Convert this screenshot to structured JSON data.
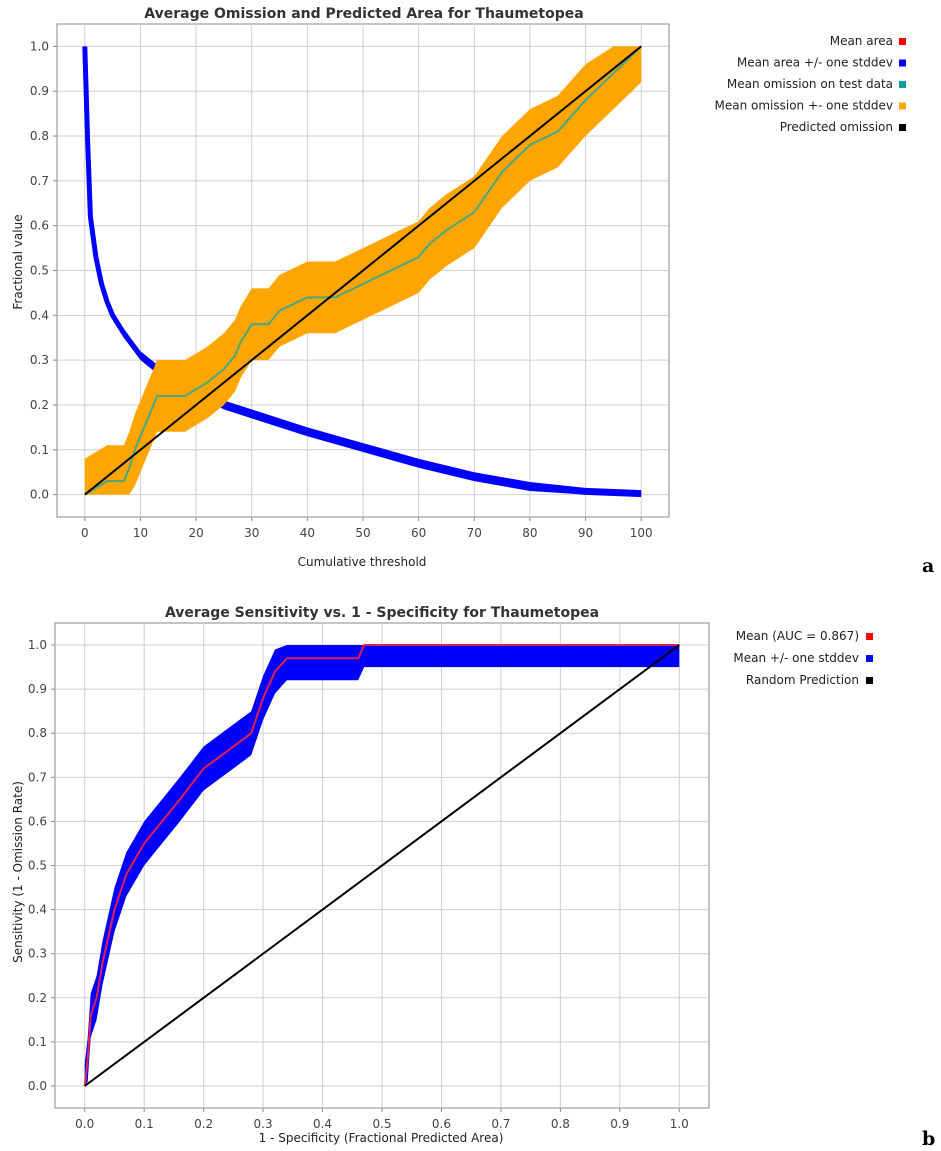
{
  "chart_data": [
    {
      "type": "line",
      "title": "Average Omission and Predicted Area for Thaumetopea",
      "xlabel": "Cumulative threshold",
      "ylabel": "Fractional value",
      "xlim": [
        -5,
        105
      ],
      "ylim": [
        -0.05,
        1.05
      ],
      "xticks": [
        "0",
        "10",
        "20",
        "30",
        "40",
        "50",
        "60",
        "70",
        "80",
        "90",
        "100"
      ],
      "yticks": [
        "0.0",
        "0.1",
        "0.2",
        "0.3",
        "0.4",
        "0.5",
        "0.6",
        "0.7",
        "0.8",
        "0.9",
        "1.0"
      ],
      "grid": true,
      "legend_position": "right",
      "panel_label": "a",
      "legend": [
        {
          "label": "Mean area",
          "color": "#ff0000"
        },
        {
          "label": "Mean area +/- one stddev",
          "color": "#0000ff"
        },
        {
          "label": "Mean omission on test data",
          "color": "#00a0a0"
        },
        {
          "label": "Mean omission +- one stddev",
          "color": "#ffa500"
        },
        {
          "label": "Predicted omission",
          "color": "#000000"
        }
      ],
      "series": [
        {
          "name": "Mean area",
          "color": "#d01010",
          "x": [
            0,
            0.5,
            1,
            2,
            3,
            4,
            5,
            7,
            10,
            15,
            20,
            25,
            30,
            40,
            50,
            60,
            70,
            80,
            90,
            100
          ],
          "y": [
            1.0,
            0.79,
            0.62,
            0.53,
            0.47,
            0.43,
            0.4,
            0.36,
            0.31,
            0.26,
            0.23,
            0.2,
            0.18,
            0.14,
            0.105,
            0.07,
            0.04,
            0.018,
            0.005,
            0.0
          ]
        },
        {
          "name": "Mean area +/- one stddev",
          "color": "#0000ff",
          "x": [
            0,
            0.5,
            1,
            2,
            3,
            4,
            5,
            7,
            10,
            15,
            20,
            25,
            30,
            40,
            50,
            60,
            70,
            80,
            90,
            100
          ],
          "y": [
            1.0,
            0.79,
            0.62,
            0.53,
            0.47,
            0.43,
            0.4,
            0.36,
            0.31,
            0.26,
            0.23,
            0.2,
            0.18,
            0.14,
            0.105,
            0.07,
            0.04,
            0.018,
            0.005,
            0.0
          ],
          "spread": 0.01
        },
        {
          "name": "Mean omission on test data",
          "color": "#48a880",
          "x": [
            0,
            4,
            7,
            8,
            9,
            10,
            11,
            12,
            13,
            15,
            18,
            22,
            25,
            27,
            28,
            30,
            33,
            35,
            40,
            45,
            50,
            55,
            60,
            62,
            65,
            70,
            75,
            80,
            85,
            90,
            95,
            100
          ],
          "y": [
            0,
            0.03,
            0.03,
            0.06,
            0.1,
            0.13,
            0.16,
            0.19,
            0.22,
            0.22,
            0.22,
            0.25,
            0.28,
            0.31,
            0.34,
            0.38,
            0.38,
            0.41,
            0.44,
            0.44,
            0.47,
            0.5,
            0.53,
            0.56,
            0.59,
            0.63,
            0.72,
            0.78,
            0.81,
            0.88,
            0.94,
            1.0
          ],
          "spread": 0.08
        },
        {
          "name": "Predicted omission",
          "color": "#000000",
          "x": [
            0,
            100
          ],
          "y": [
            0,
            1.0
          ]
        }
      ]
    },
    {
      "type": "line",
      "title": "Average Sensitivity vs. 1 - Specificity for Thaumetopea",
      "xlabel": "1 - Specificity (Fractional Predicted Area)",
      "ylabel": "Sensitivity (1 - Omission Rate)",
      "xlim": [
        -0.05,
        1.05
      ],
      "ylim": [
        -0.05,
        1.05
      ],
      "xticks": [
        "0.0",
        "0.1",
        "0.2",
        "0.3",
        "0.4",
        "0.5",
        "0.6",
        "0.7",
        "0.8",
        "0.9",
        "1.0"
      ],
      "yticks": [
        "0.0",
        "0.1",
        "0.2",
        "0.3",
        "0.4",
        "0.5",
        "0.6",
        "0.7",
        "0.8",
        "0.9",
        "1.0"
      ],
      "grid": true,
      "legend_position": "right",
      "panel_label": "b",
      "legend": [
        {
          "label": "Mean (AUC = 0.867)",
          "color": "#ff0000"
        },
        {
          "label": "Mean +/- one stddev",
          "color": "#0000ff"
        },
        {
          "label": "Random Prediction",
          "color": "#000000"
        }
      ],
      "series": [
        {
          "name": "Mean +/- one stddev",
          "color": "#0000ff",
          "x": [
            0,
            0.005,
            0.01,
            0.02,
            0.03,
            0.05,
            0.07,
            0.1,
            0.13,
            0.16,
            0.2,
            0.23,
            0.25,
            0.28,
            0.3,
            0.32,
            0.34,
            0.4,
            0.46,
            0.47,
            1.0
          ],
          "y": [
            0,
            0.06,
            0.16,
            0.2,
            0.28,
            0.4,
            0.48,
            0.55,
            0.6,
            0.65,
            0.72,
            0.75,
            0.77,
            0.8,
            0.88,
            0.94,
            0.97,
            0.97,
            0.97,
            1.0,
            1.0
          ],
          "spread": 0.05
        },
        {
          "name": "Mean (AUC = 0.867)",
          "color": "#e02050",
          "x": [
            0,
            0.005,
            0.01,
            0.02,
            0.03,
            0.05,
            0.07,
            0.1,
            0.13,
            0.16,
            0.2,
            0.23,
            0.25,
            0.28,
            0.3,
            0.32,
            0.34,
            0.4,
            0.46,
            0.47,
            1.0
          ],
          "y": [
            0,
            0.06,
            0.16,
            0.2,
            0.28,
            0.4,
            0.48,
            0.55,
            0.6,
            0.65,
            0.72,
            0.75,
            0.77,
            0.8,
            0.88,
            0.94,
            0.97,
            0.97,
            0.97,
            1.0,
            1.0
          ]
        },
        {
          "name": "Random Prediction",
          "color": "#000000",
          "x": [
            0,
            1.0
          ],
          "y": [
            0,
            1.0
          ]
        }
      ]
    }
  ]
}
